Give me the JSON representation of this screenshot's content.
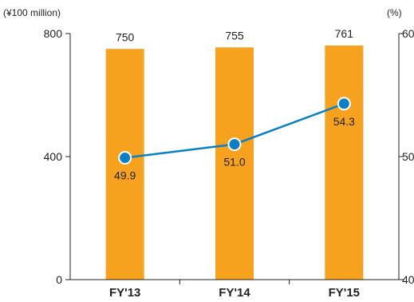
{
  "chart_data": {
    "type": "bar",
    "categories": [
      "FY'13",
      "FY'14",
      "FY'15"
    ],
    "series": [
      {
        "type": "bar",
        "axis": "left",
        "values": [
          750,
          755,
          761
        ],
        "labels": [
          "750",
          "755",
          "761"
        ],
        "color": "#f6a21e"
      },
      {
        "type": "line",
        "axis": "right",
        "values": [
          49.9,
          51.0,
          54.3
        ],
        "labels": [
          "49.9",
          "51.0",
          "54.3"
        ],
        "color": "#0b7fc3",
        "marker_color": "#0b7fc3"
      }
    ],
    "y_left": {
      "unit": "(¥100 million)",
      "range": [
        0,
        800
      ],
      "ticks": [
        0,
        400,
        800
      ],
      "tick_labels": [
        "0",
        "400",
        "800"
      ]
    },
    "y_right": {
      "unit": "(%)",
      "range": [
        40,
        60
      ],
      "ticks": [
        40,
        50,
        60
      ],
      "tick_labels": [
        "40",
        "50",
        "60"
      ]
    },
    "grid": false,
    "legend": "none"
  },
  "colors": {
    "axis": "#231f20",
    "bar": "#f6a21e",
    "line": "#0b7fc3"
  }
}
